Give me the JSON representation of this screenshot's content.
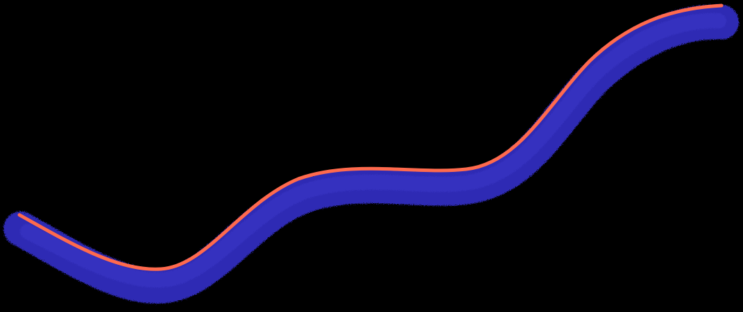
{
  "scene": {
    "background_color": "#000000",
    "stripe": {
      "shape": "wave-stripe",
      "body_color": "#2f2bb4",
      "body_highlight_color": "#3a37c8",
      "edge_color": "#ff6a4d",
      "texture": "grainy"
    }
  }
}
